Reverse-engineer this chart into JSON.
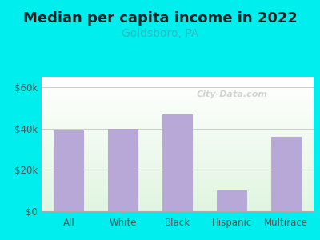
{
  "title": "Median per capita income in 2022",
  "subtitle": "Goldsboro, PA",
  "categories": [
    "All",
    "White",
    "Black",
    "Hispanic",
    "Multirace"
  ],
  "values": [
    39000,
    40000,
    47000,
    10000,
    36000
  ],
  "bar_color": "#b8a8d8",
  "title_fontsize": 13,
  "subtitle_fontsize": 10,
  "subtitle_color": "#2abcbc",
  "bg_color": "#00EEEE",
  "yticks": [
    0,
    20000,
    40000,
    60000
  ],
  "ytick_labels": [
    "$0",
    "$20k",
    "$40k",
    "$60k"
  ],
  "ylim": [
    0,
    65000
  ],
  "watermark": "City-Data.com"
}
